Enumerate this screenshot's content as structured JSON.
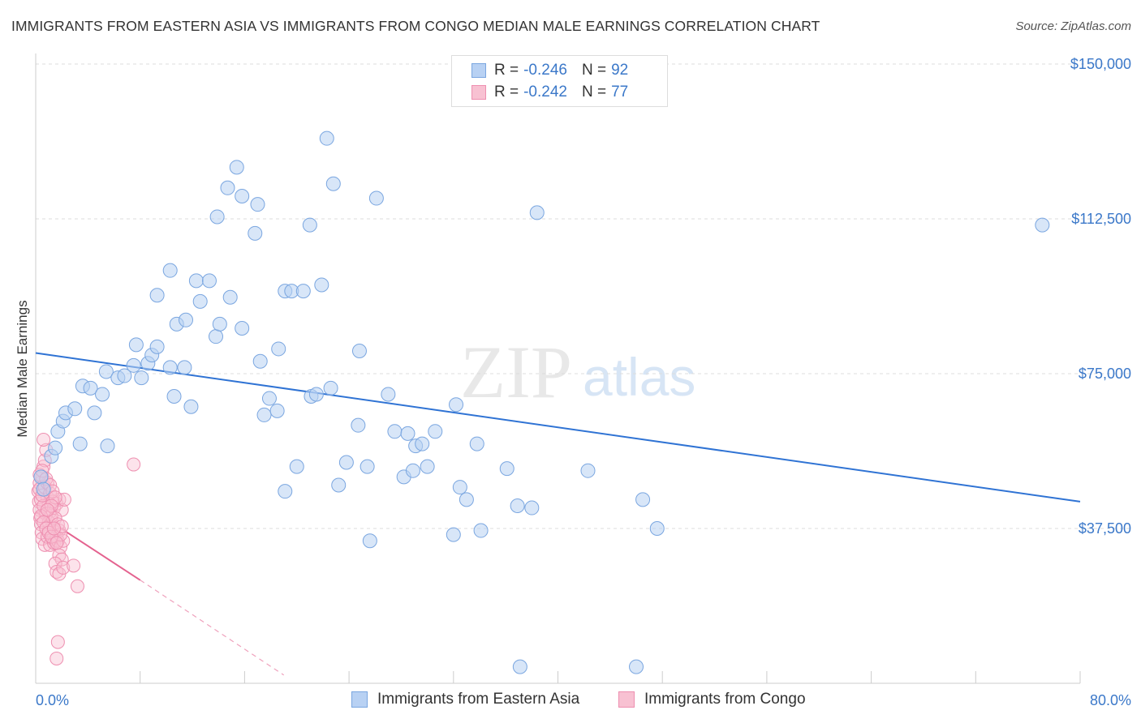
{
  "title": "IMMIGRANTS FROM EASTERN ASIA VS IMMIGRANTS FROM CONGO MEDIAN MALE EARNINGS CORRELATION CHART",
  "source": "Source: ZipAtlas.com",
  "watermark": {
    "zip": "ZIP",
    "atlas": "atlas"
  },
  "colors": {
    "blue_fill": "#b8d1f3",
    "blue_stroke": "#7aa6e0",
    "blue_line": "#2f73d4",
    "pink_fill": "#f8c1d2",
    "pink_stroke": "#ee8fb0",
    "pink_line": "#e4628f",
    "accent_text": "#3b78c9",
    "grid": "#dddddd"
  },
  "legend": {
    "r_label": "R =",
    "n_label": "N =",
    "rows": [
      {
        "series": "Immigrants from Eastern Asia",
        "r": "-0.246",
        "n": "92"
      },
      {
        "series": "Immigrants from Congo",
        "r": "-0.242",
        "n": "77"
      }
    ]
  },
  "chart_data": {
    "type": "scatter",
    "title": "IMMIGRANTS FROM EASTERN ASIA VS IMMIGRANTS FROM CONGO MEDIAN MALE EARNINGS CORRELATION CHART",
    "xlabel": "",
    "ylabel": "Median Male Earnings",
    "xlim": [
      0,
      80
    ],
    "ylim": [
      0,
      150000
    ],
    "x_tick_labels": [
      "0.0%",
      "80.0%"
    ],
    "y_ticks": [
      {
        "value": 37500,
        "label": "$37,500"
      },
      {
        "value": 75000,
        "label": "$75,000"
      },
      {
        "value": 112500,
        "label": "$112,500"
      },
      {
        "value": 150000,
        "label": "$150,000"
      }
    ],
    "grid": true,
    "series": [
      {
        "name": "Immigrants from Eastern Asia",
        "color": "#7aa6e0",
        "r": -0.246,
        "n": 92,
        "trend": {
          "x": [
            0,
            80
          ],
          "y": [
            80000,
            44000
          ]
        },
        "points": [
          [
            0.4,
            50000
          ],
          [
            0.6,
            47000
          ],
          [
            1.2,
            55000
          ],
          [
            1.5,
            57000
          ],
          [
            1.7,
            61000
          ],
          [
            2.1,
            63500
          ],
          [
            2.3,
            65500
          ],
          [
            3.0,
            66500
          ],
          [
            3.4,
            58000
          ],
          [
            3.6,
            72000
          ],
          [
            4.2,
            71500
          ],
          [
            4.5,
            65500
          ],
          [
            5.1,
            70000
          ],
          [
            5.5,
            57500
          ],
          [
            5.4,
            75500
          ],
          [
            6.3,
            74000
          ],
          [
            6.8,
            74500
          ],
          [
            7.7,
            82000
          ],
          [
            7.5,
            77000
          ],
          [
            8.6,
            77500
          ],
          [
            8.1,
            74000
          ],
          [
            8.9,
            79500
          ],
          [
            9.3,
            81500
          ],
          [
            10.3,
            76500
          ],
          [
            10.6,
            69500
          ],
          [
            9.3,
            94000
          ],
          [
            10.3,
            100000
          ],
          [
            10.8,
            87000
          ],
          [
            11.5,
            88000
          ],
          [
            11.4,
            76500
          ],
          [
            11.9,
            67000
          ],
          [
            12.3,
            97500
          ],
          [
            12.6,
            92500
          ],
          [
            13.3,
            97500
          ],
          [
            13.9,
            113000
          ],
          [
            13.8,
            84000
          ],
          [
            14.1,
            87000
          ],
          [
            14.9,
            93500
          ],
          [
            14.7,
            120000
          ],
          [
            15.4,
            125000
          ],
          [
            15.8,
            118000
          ],
          [
            15.8,
            86000
          ],
          [
            16.8,
            109000
          ],
          [
            17.0,
            116000
          ],
          [
            17.2,
            78000
          ],
          [
            17.5,
            65000
          ],
          [
            17.9,
            69000
          ],
          [
            18.5,
            66000
          ],
          [
            18.6,
            81000
          ],
          [
            19.1,
            95000
          ],
          [
            19.1,
            46500
          ],
          [
            19.6,
            95000
          ],
          [
            20.0,
            52500
          ],
          [
            20.5,
            95000
          ],
          [
            21.1,
            69500
          ],
          [
            21.0,
            111000
          ],
          [
            21.5,
            70000
          ],
          [
            21.9,
            96500
          ],
          [
            22.3,
            132000
          ],
          [
            22.6,
            71500
          ],
          [
            22.8,
            121000
          ],
          [
            23.2,
            48000
          ],
          [
            23.8,
            53500
          ],
          [
            24.7,
            62500
          ],
          [
            24.8,
            80500
          ],
          [
            25.4,
            52500
          ],
          [
            25.6,
            34500
          ],
          [
            26.1,
            117500
          ],
          [
            27.0,
            70000
          ],
          [
            27.5,
            61000
          ],
          [
            28.2,
            50000
          ],
          [
            28.5,
            60500
          ],
          [
            28.9,
            51500
          ],
          [
            29.1,
            57500
          ],
          [
            29.6,
            58000
          ],
          [
            30.0,
            52500
          ],
          [
            30.6,
            61000
          ],
          [
            32.0,
            36000
          ],
          [
            32.2,
            67500
          ],
          [
            32.5,
            47500
          ],
          [
            33.0,
            44500
          ],
          [
            33.8,
            58000
          ],
          [
            34.1,
            37000
          ],
          [
            36.1,
            52000
          ],
          [
            36.9,
            43000
          ],
          [
            38.0,
            42500
          ],
          [
            38.4,
            114000
          ],
          [
            42.3,
            51500
          ],
          [
            37.1,
            4000
          ],
          [
            46.5,
            44500
          ],
          [
            47.6,
            37500
          ],
          [
            77.1,
            111000
          ],
          [
            46.0,
            4000
          ]
        ]
      },
      {
        "name": "Immigrants from Congo",
        "color": "#ee8fb0",
        "r": -0.242,
        "n": 77,
        "trend": {
          "x": [
            0,
            8
          ],
          "y": [
            41500,
            25000
          ]
        },
        "trend_dashed": {
          "x": [
            8,
            19
          ],
          "y": [
            25000,
            2000
          ]
        },
        "points": [
          [
            0.2,
            46500
          ],
          [
            0.25,
            44000
          ],
          [
            0.3,
            42000
          ],
          [
            0.35,
            40000
          ],
          [
            0.4,
            38500
          ],
          [
            0.45,
            36500
          ],
          [
            0.3,
            48500
          ],
          [
            0.5,
            50000
          ],
          [
            0.6,
            52500
          ],
          [
            0.7,
            54000
          ],
          [
            0.8,
            56500
          ],
          [
            0.6,
            59000
          ],
          [
            0.9,
            45000
          ],
          [
            1.0,
            43500
          ],
          [
            1.1,
            41500
          ],
          [
            1.2,
            39500
          ],
          [
            1.3,
            38000
          ],
          [
            1.4,
            36000
          ],
          [
            1.5,
            34500
          ],
          [
            0.5,
            35000
          ],
          [
            0.7,
            33500
          ],
          [
            0.9,
            35500
          ],
          [
            1.0,
            37000
          ],
          [
            1.1,
            33500
          ],
          [
            1.3,
            35000
          ],
          [
            1.4,
            34000
          ],
          [
            1.6,
            35500
          ],
          [
            1.7,
            34500
          ],
          [
            1.8,
            37000
          ],
          [
            1.9,
            33000
          ],
          [
            2.1,
            34500
          ],
          [
            0.4,
            44500
          ],
          [
            0.6,
            43000
          ],
          [
            0.8,
            41000
          ],
          [
            1.0,
            39000
          ],
          [
            1.2,
            40500
          ],
          [
            1.4,
            42500
          ],
          [
            1.6,
            43500
          ],
          [
            1.8,
            44500
          ],
          [
            2.0,
            42000
          ],
          [
            2.2,
            44500
          ],
          [
            0.3,
            47000
          ],
          [
            0.5,
            45500
          ],
          [
            0.7,
            47500
          ],
          [
            0.9,
            48500
          ],
          [
            1.1,
            46000
          ],
          [
            1.3,
            44000
          ],
          [
            1.5,
            40000
          ],
          [
            1.7,
            38500
          ],
          [
            1.9,
            36000
          ],
          [
            2.0,
            38000
          ],
          [
            0.4,
            40500
          ],
          [
            0.6,
            39000
          ],
          [
            0.8,
            37500
          ],
          [
            1.0,
            36500
          ],
          [
            1.2,
            35500
          ],
          [
            1.4,
            37500
          ],
          [
            1.6,
            34000
          ],
          [
            1.8,
            31000
          ],
          [
            2.0,
            30000
          ],
          [
            1.5,
            29000
          ],
          [
            1.6,
            27000
          ],
          [
            1.8,
            26500
          ],
          [
            2.1,
            28000
          ],
          [
            2.9,
            28500
          ],
          [
            3.2,
            23500
          ],
          [
            1.7,
            10000
          ],
          [
            1.6,
            6000
          ],
          [
            7.5,
            53000
          ],
          [
            0.3,
            50500
          ],
          [
            0.5,
            51500
          ],
          [
            0.8,
            49500
          ],
          [
            1.1,
            48000
          ],
          [
            1.3,
            46500
          ],
          [
            1.5,
            45000
          ],
          [
            1.2,
            43000
          ],
          [
            0.9,
            42000
          ]
        ]
      }
    ]
  }
}
